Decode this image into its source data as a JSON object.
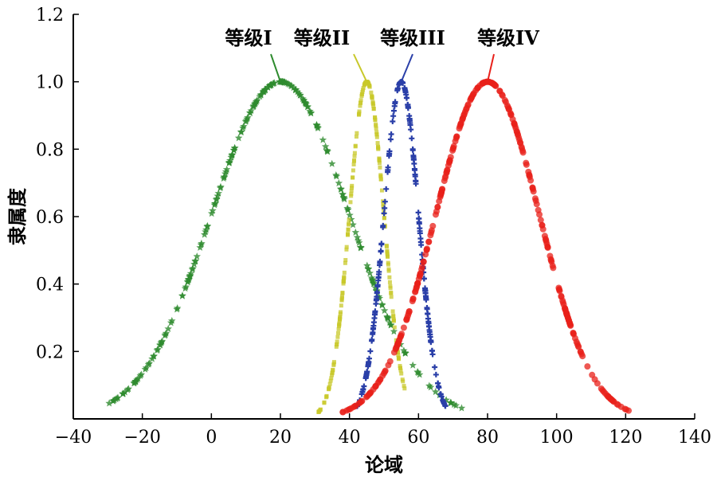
{
  "chart_data": {
    "type": "scatter",
    "xlabel": "论域",
    "ylabel": "隶属度",
    "xlim": [
      -40,
      140
    ],
    "ylim": [
      0,
      1.2
    ],
    "xticks": [
      -40,
      -20,
      0,
      20,
      40,
      60,
      80,
      100,
      120,
      140
    ],
    "yticks": [
      0.2,
      0.4,
      0.6,
      0.8,
      1.0,
      1.2
    ],
    "ytick_labels": [
      "0.2",
      "0.4",
      "0.6",
      "0.8",
      "1.0",
      "1.2"
    ],
    "grid": false,
    "series": [
      {
        "name": "等级I",
        "center": 20,
        "sigma": 20,
        "x_range": [
          -31,
          74
        ],
        "color": "#2e8b2e",
        "marker": "star",
        "peak": 1.0
      },
      {
        "name": "等级II",
        "center": 45,
        "sigma": 5,
        "x_range": [
          31,
          56
        ],
        "color": "#c8c82a",
        "marker": "square",
        "peak": 1.0
      },
      {
        "name": "等级III",
        "center": 55,
        "sigma": 5,
        "x_range": [
          42,
          68
        ],
        "color": "#2a3fa8",
        "marker": "plus",
        "peak": 1.0
      },
      {
        "name": "等级IV",
        "center": 80,
        "sigma": 15,
        "x_range": [
          38,
          121
        ],
        "color": "#e8201a",
        "marker": "circle",
        "peak": 1.0
      }
    ],
    "annotations": [
      {
        "text": "等级I",
        "series": 0
      },
      {
        "text": "等级II",
        "series": 1
      },
      {
        "text": "等级III",
        "series": 2
      },
      {
        "text": "等级IV",
        "series": 3
      }
    ]
  }
}
